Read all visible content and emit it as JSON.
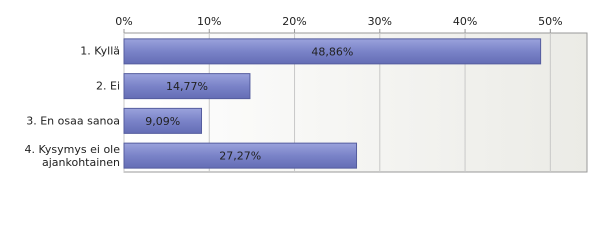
{
  "chart_data": {
    "type": "bar",
    "orientation": "horizontal",
    "categories": [
      "1. Kyllä",
      "2. Ei",
      "3. En osaa sanoa",
      "4. Kysymys ei ole ajankohtainen"
    ],
    "values": [
      48.86,
      14.77,
      9.09,
      27.27
    ],
    "value_labels": [
      "48,86%",
      "14,77%",
      "9,09%",
      "27,27%"
    ],
    "color": "#7a83c8",
    "xlim": [
      0,
      54.3
    ],
    "xticks": [
      {
        "value": 0,
        "label": "0%"
      },
      {
        "value": 10,
        "label": "10%"
      },
      {
        "value": 20,
        "label": "20%"
      },
      {
        "value": 30,
        "label": "30%"
      },
      {
        "value": 40,
        "label": "40%"
      },
      {
        "value": 50,
        "label": "50%"
      }
    ],
    "grid": true
  }
}
